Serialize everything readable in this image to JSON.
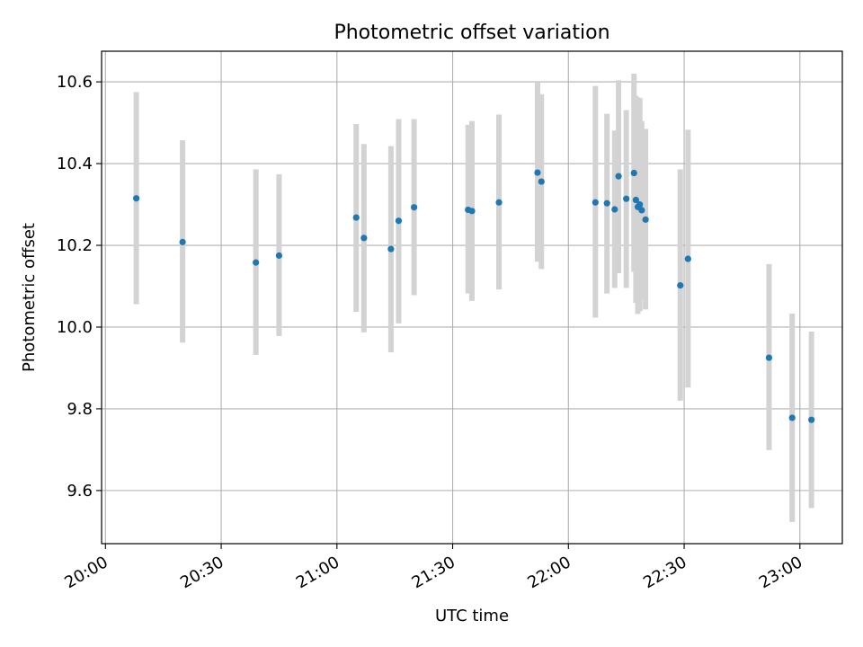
{
  "chart_data": {
    "type": "scatter",
    "title": "Photometric offset variation",
    "xlabel": "UTC time",
    "ylabel": "Photometric offset",
    "xlim": [
      "19:59",
      "23:11"
    ],
    "ylim": [
      9.47,
      10.675
    ],
    "x_ticks": [
      "20:00",
      "20:30",
      "21:00",
      "21:30",
      "22:00",
      "22:30",
      "23:00"
    ],
    "y_ticks": [
      9.6,
      9.8,
      10.0,
      10.2,
      10.4,
      10.6
    ],
    "y_tick_labels": [
      "9.6",
      "9.8",
      "10.0",
      "10.2",
      "10.4",
      "10.6"
    ],
    "grid": true,
    "colors": {
      "point": "#1f77b4",
      "errorbar": "#d3d3d3",
      "grid": "#b0b0b0",
      "axis": "#000000"
    },
    "series": [
      {
        "points": [
          {
            "x": "20:08",
            "y": 10.315,
            "y_low": 10.056,
            "y_high": 10.575
          },
          {
            "x": "20:20",
            "y": 10.208,
            "y_low": 9.962,
            "y_high": 10.457
          },
          {
            "x": "20:39",
            "y": 10.158,
            "y_low": 9.932,
            "y_high": 10.386
          },
          {
            "x": "20:45",
            "y": 10.175,
            "y_low": 9.978,
            "y_high": 10.374
          },
          {
            "x": "21:05",
            "y": 10.268,
            "y_low": 10.037,
            "y_high": 10.497
          },
          {
            "x": "21:07",
            "y": 10.218,
            "y_low": 9.987,
            "y_high": 10.448
          },
          {
            "x": "21:14",
            "y": 10.191,
            "y_low": 9.938,
            "y_high": 10.443
          },
          {
            "x": "21:16",
            "y": 10.26,
            "y_low": 10.009,
            "y_high": 10.509
          },
          {
            "x": "21:20",
            "y": 10.293,
            "y_low": 10.078,
            "y_high": 10.509
          },
          {
            "x": "21:34",
            "y": 10.287,
            "y_low": 10.082,
            "y_high": 10.495
          },
          {
            "x": "21:35",
            "y": 10.284,
            "y_low": 10.064,
            "y_high": 10.504
          },
          {
            "x": "21:42",
            "y": 10.305,
            "y_low": 10.092,
            "y_high": 10.52
          },
          {
            "x": "21:52",
            "y": 10.378,
            "y_low": 10.16,
            "y_high": 10.598
          },
          {
            "x": "21:53",
            "y": 10.356,
            "y_low": 10.142,
            "y_high": 10.57
          },
          {
            "x": "22:07",
            "y": 10.305,
            "y_low": 10.023,
            "y_high": 10.59
          },
          {
            "x": "22:10",
            "y": 10.303,
            "y_low": 10.082,
            "y_high": 10.522
          },
          {
            "x": "22:12",
            "y": 10.288,
            "y_low": 10.096,
            "y_high": 10.481
          },
          {
            "x": "22:13",
            "y": 10.369,
            "y_low": 10.132,
            "y_high": 10.604
          },
          {
            "x": "22:15",
            "y": 10.314,
            "y_low": 10.096,
            "y_high": 10.531
          },
          {
            "x": "22:17",
            "y": 10.377,
            "y_low": 10.135,
            "y_high": 10.62
          },
          {
            "x": "22:17:30",
            "y": 10.311,
            "y_low": 10.059,
            "y_high": 10.566
          },
          {
            "x": "22:18",
            "y": 10.294,
            "y_low": 10.032,
            "y_high": 10.562
          },
          {
            "x": "22:18:30",
            "y": 10.3,
            "y_low": 10.039,
            "y_high": 10.56
          },
          {
            "x": "22:19",
            "y": 10.286,
            "y_low": 10.068,
            "y_high": 10.504
          },
          {
            "x": "22:20",
            "y": 10.263,
            "y_low": 10.043,
            "y_high": 10.485
          },
          {
            "x": "22:29",
            "y": 10.102,
            "y_low": 9.82,
            "y_high": 10.386
          },
          {
            "x": "22:31",
            "y": 10.167,
            "y_low": 9.852,
            "y_high": 10.483
          },
          {
            "x": "22:52",
            "y": 9.925,
            "y_low": 9.699,
            "y_high": 10.154
          },
          {
            "x": "22:58",
            "y": 9.778,
            "y_low": 9.523,
            "y_high": 10.033
          },
          {
            "x": "23:03",
            "y": 9.773,
            "y_low": 9.557,
            "y_high": 9.989
          }
        ]
      }
    ]
  }
}
